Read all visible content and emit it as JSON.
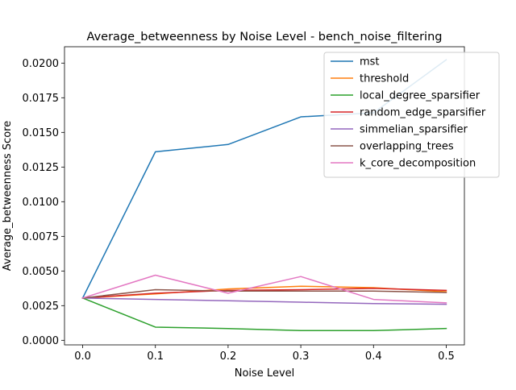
{
  "chart_data": {
    "type": "line",
    "title": "Average_betweenness by Noise Level - bench_noise_filtering",
    "xlabel": "Noise Level",
    "ylabel": "Average_betweenness Score",
    "x": [
      0.0,
      0.1,
      0.2,
      0.3,
      0.4,
      0.5
    ],
    "xlim": [
      -0.025,
      0.525
    ],
    "ylim": [
      -0.00033,
      0.02118
    ],
    "x_ticks": [
      0.0,
      0.1,
      0.2,
      0.3,
      0.4,
      0.5
    ],
    "x_tick_labels": [
      "0.0",
      "0.1",
      "0.2",
      "0.3",
      "0.4",
      "0.5"
    ],
    "y_ticks": [
      0.0,
      0.0025,
      0.005,
      0.0075,
      0.01,
      0.0125,
      0.015,
      0.0175,
      0.02
    ],
    "y_tick_labels": [
      "0.0000",
      "0.0025",
      "0.0050",
      "0.0075",
      "0.0100",
      "0.0125",
      "0.0150",
      "0.0175",
      "0.0200"
    ],
    "grid": false,
    "legend_position": "top-right",
    "series": [
      {
        "name": "mst",
        "color": "#1f77b4",
        "values": [
          0.00305,
          0.0136,
          0.01413,
          0.01612,
          0.01641,
          0.02024
        ]
      },
      {
        "name": "threshold",
        "color": "#ff7f0e",
        "values": [
          0.00305,
          0.00335,
          0.0037,
          0.0039,
          0.0038,
          0.0035
        ]
      },
      {
        "name": "local_degree_sparsifier",
        "color": "#2ca02c",
        "values": [
          0.00305,
          0.00095,
          0.00085,
          0.0007,
          0.0007,
          0.00085
        ]
      },
      {
        "name": "random_edge_sparsifier",
        "color": "#d62728",
        "values": [
          0.00305,
          0.0034,
          0.0036,
          0.00365,
          0.00375,
          0.0036
        ]
      },
      {
        "name": "simmelian_sparsifier",
        "color": "#9467bd",
        "values": [
          0.00305,
          0.00295,
          0.00285,
          0.00275,
          0.00265,
          0.0026
        ]
      },
      {
        "name": "overlapping_trees",
        "color": "#8c564b",
        "values": [
          0.00305,
          0.00365,
          0.00355,
          0.00355,
          0.00355,
          0.00345
        ]
      },
      {
        "name": "k_core_decomposition",
        "color": "#e377c2",
        "values": [
          0.00305,
          0.0047,
          0.0034,
          0.0046,
          0.00295,
          0.0027
        ]
      }
    ]
  }
}
